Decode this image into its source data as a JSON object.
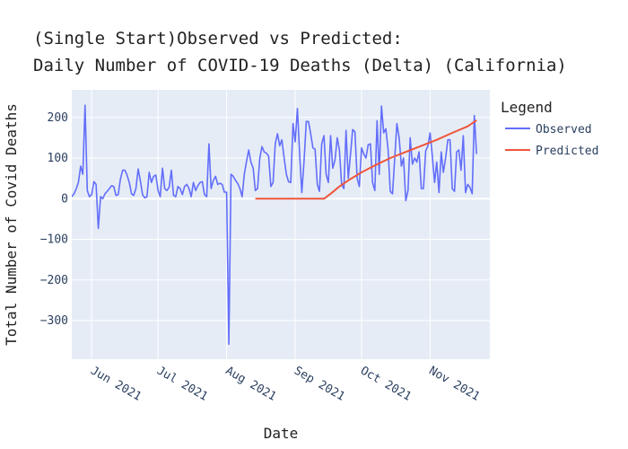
{
  "chart_data": {
    "type": "line",
    "title_line1": "(Single Start)Observed vs Predicted:",
    "title_line2": "Daily Number of COVID-19 Deaths (Delta) (California)",
    "xlabel": "Date",
    "ylabel": "Total Number of Covid Deaths",
    "x_range": [
      "2021-05-23",
      "2021-11-28"
    ],
    "ylim": [
      -395,
      268
    ],
    "x_ticks": [
      {
        "date": "2021-06-01",
        "label": "Jun 2021"
      },
      {
        "date": "2021-07-01",
        "label": "Jul 2021"
      },
      {
        "date": "2021-08-01",
        "label": "Aug 2021"
      },
      {
        "date": "2021-09-01",
        "label": "Sep 2021"
      },
      {
        "date": "2021-10-01",
        "label": "Oct 2021"
      },
      {
        "date": "2021-11-01",
        "label": "Nov 2021"
      }
    ],
    "y_ticks": [
      200,
      100,
      0,
      -100,
      -200,
      -300
    ],
    "y_tick_labels": [
      "200",
      "100",
      "0",
      "−100",
      "−200",
      "−300"
    ],
    "grid": true,
    "legend": {
      "title": "Legend",
      "position": "right"
    },
    "colors": {
      "plot_bg": "#E5ECF6",
      "grid": "#FFFFFF",
      "observed": "#636EFA",
      "predicted": "#EF553B"
    },
    "series": [
      {
        "name": "Observed",
        "start_date": "2021-05-23",
        "values": [
          5,
          12,
          24,
          40,
          80,
          60,
          230,
          20,
          5,
          10,
          42,
          35,
          -73,
          5,
          0,
          12,
          18,
          25,
          32,
          30,
          8,
          10,
          48,
          70,
          70,
          58,
          40,
          12,
          8,
          25,
          73,
          45,
          10,
          2,
          5,
          65,
          40,
          55,
          58,
          20,
          5,
          75,
          25,
          20,
          28,
          70,
          8,
          5,
          30,
          25,
          10,
          30,
          35,
          25,
          5,
          40,
          20,
          32,
          40,
          42,
          10,
          5,
          135,
          25,
          45,
          55,
          35,
          38,
          35,
          16,
          16,
          -358,
          60,
          55,
          45,
          38,
          25,
          5,
          60,
          92,
          120,
          90,
          75,
          20,
          25,
          100,
          128,
          115,
          112,
          105,
          30,
          40,
          135,
          160,
          130,
          145,
          100,
          60,
          42,
          40,
          185,
          140,
          222,
          110,
          15,
          92,
          190,
          190,
          160,
          125,
          122,
          35,
          18,
          135,
          155,
          60,
          40,
          155,
          75,
          95,
          150,
          120,
          35,
          25,
          168,
          50,
          110,
          170,
          165,
          50,
          30,
          125,
          110,
          100,
          133,
          135,
          40,
          20,
          192,
          60,
          228,
          162,
          172,
          120,
          18,
          12,
          100,
          185,
          150,
          80,
          100,
          -5,
          20,
          150,
          85,
          100,
          90,
          115,
          25,
          25,
          118,
          130,
          162,
          105,
          40,
          90,
          15,
          115,
          65,
          100,
          145,
          145,
          25,
          18,
          115,
          120,
          70,
          155,
          15,
          35,
          28,
          12,
          205,
          110
        ]
      },
      {
        "name": "Predicted",
        "points": [
          [
            "2021-08-14",
            0
          ],
          [
            "2021-08-20",
            0
          ],
          [
            "2021-08-27",
            0
          ],
          [
            "2021-09-03",
            0
          ],
          [
            "2021-09-10",
            0
          ],
          [
            "2021-09-14",
            0
          ],
          [
            "2021-09-17",
            12
          ],
          [
            "2021-09-21",
            30
          ],
          [
            "2021-09-25",
            45
          ],
          [
            "2021-10-01",
            65
          ],
          [
            "2021-10-07",
            82
          ],
          [
            "2021-10-14",
            100
          ],
          [
            "2021-10-21",
            115
          ],
          [
            "2021-10-28",
            130
          ],
          [
            "2021-11-04",
            145
          ],
          [
            "2021-11-11",
            162
          ],
          [
            "2021-11-18",
            178
          ],
          [
            "2021-11-22",
            193
          ]
        ]
      }
    ]
  }
}
